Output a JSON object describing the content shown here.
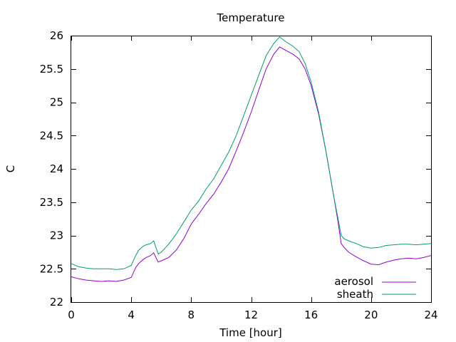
{
  "chart_data": {
    "type": "line",
    "title": "Temperature",
    "xlabel": "Time [hour]",
    "ylabel": "C",
    "xlim": [
      0,
      24
    ],
    "ylim": [
      22,
      26
    ],
    "xticks": [
      0,
      4,
      8,
      12,
      16,
      20,
      24
    ],
    "yticks": [
      22,
      22.5,
      23,
      23.5,
      24,
      24.5,
      25,
      25.5,
      26
    ],
    "grid": false,
    "legend": "bottom-right",
    "series": [
      {
        "name": "aerosol",
        "color": "#9400d3",
        "x": [
          0,
          0.5,
          1,
          1.5,
          2,
          2.5,
          3,
          3.5,
          4,
          4.3,
          4.5,
          4.8,
          5,
          5.3,
          5.5,
          5.8,
          6,
          6.5,
          7,
          7.5,
          8,
          8.5,
          9,
          9.5,
          10,
          10.5,
          11,
          11.5,
          12,
          12.5,
          13,
          13.5,
          13.9,
          14.3,
          14.8,
          15.2,
          15.6,
          16,
          16.5,
          17,
          17.5,
          17.8,
          18,
          18.2,
          18.5,
          19,
          19.5,
          20,
          20.5,
          21,
          21.5,
          22,
          22.5,
          23,
          23.5,
          24
        ],
        "y": [
          22.38,
          22.35,
          22.33,
          22.32,
          22.31,
          22.32,
          22.31,
          22.33,
          22.37,
          22.52,
          22.58,
          22.64,
          22.67,
          22.7,
          22.74,
          22.6,
          22.62,
          22.67,
          22.78,
          22.95,
          23.17,
          23.32,
          23.48,
          23.62,
          23.8,
          24.0,
          24.27,
          24.55,
          24.85,
          25.18,
          25.5,
          25.72,
          25.83,
          25.78,
          25.72,
          25.65,
          25.5,
          25.25,
          24.82,
          24.25,
          23.6,
          23.2,
          22.88,
          22.82,
          22.75,
          22.68,
          22.62,
          22.57,
          22.56,
          22.6,
          22.63,
          22.65,
          22.66,
          22.65,
          22.67,
          22.7
        ]
      },
      {
        "name": "sheath",
        "color": "#009e73",
        "x": [
          0,
          0.5,
          1,
          1.5,
          2,
          2.5,
          3,
          3.5,
          4,
          4.3,
          4.5,
          4.8,
          5,
          5.3,
          5.5,
          5.8,
          6,
          6.5,
          7,
          7.5,
          8,
          8.5,
          9,
          9.5,
          10,
          10.5,
          11,
          11.5,
          12,
          12.5,
          13,
          13.5,
          13.9,
          14.3,
          14.8,
          15.2,
          15.6,
          16,
          16.5,
          17,
          17.5,
          17.8,
          18,
          18.2,
          18.5,
          19,
          19.5,
          20,
          20.5,
          21,
          21.5,
          22,
          22.5,
          23,
          23.5,
          24
        ],
        "y": [
          22.58,
          22.53,
          22.51,
          22.5,
          22.5,
          22.5,
          22.49,
          22.5,
          22.55,
          22.7,
          22.78,
          22.84,
          22.86,
          22.88,
          22.92,
          22.72,
          22.75,
          22.87,
          23.02,
          23.2,
          23.38,
          23.52,
          23.7,
          23.85,
          24.05,
          24.25,
          24.5,
          24.8,
          25.1,
          25.4,
          25.7,
          25.88,
          25.98,
          25.91,
          25.84,
          25.76,
          25.58,
          25.3,
          24.85,
          24.25,
          23.6,
          23.25,
          23.0,
          22.95,
          22.92,
          22.88,
          22.83,
          22.81,
          22.82,
          22.85,
          22.86,
          22.87,
          22.87,
          22.86,
          22.87,
          22.88
        ]
      }
    ]
  }
}
